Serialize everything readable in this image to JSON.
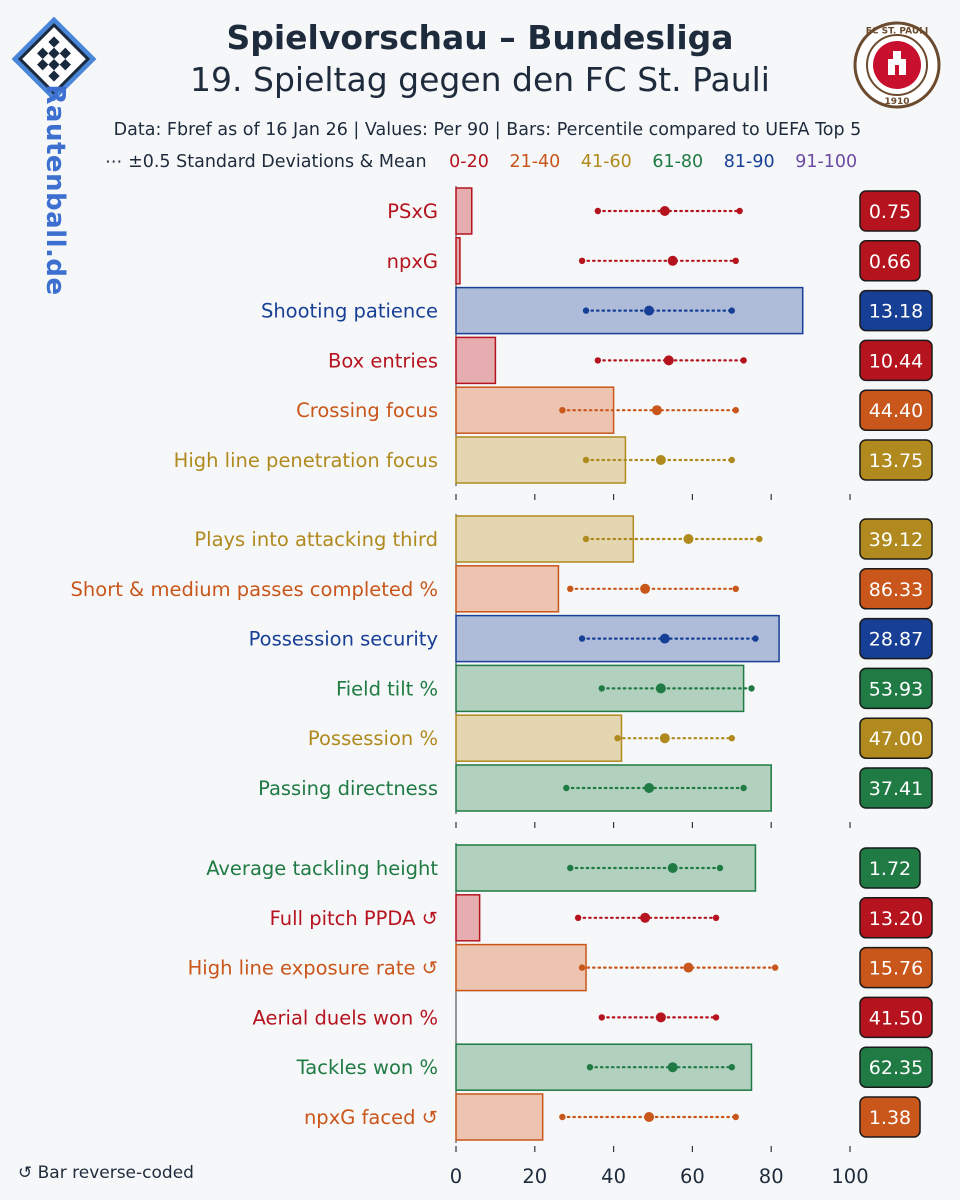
{
  "header": {
    "title": "Spielvorschau – Bundesliga",
    "subtitle": "19. Spieltag gegen den FC St. Pauli",
    "meta": "Data: Fbref as of 16 Jan 26 | Values: Per 90 | Bars: Percentile compared to UEFA Top 5",
    "sd_legend": "⋯  ±0.5 Standard Deviations & Mean",
    "side_brand": "Rautenball.de",
    "team_logo_text": "FC ST. PAULI 1910",
    "footnote": "↺ Bar reverse-coded"
  },
  "colors": {
    "0-20": "#b5141e",
    "21-40": "#c9561a",
    "41-60": "#b08a1e",
    "61-80": "#1f7a44",
    "81-90": "#173f96",
    "91-100": "#6b4aa3"
  },
  "percentile_legend": [
    {
      "label": "0-20",
      "color": "#b5141e"
    },
    {
      "label": "21-40",
      "color": "#c9561a"
    },
    {
      "label": "41-60",
      "color": "#b08a1e"
    },
    {
      "label": "61-80",
      "color": "#1f7a44"
    },
    {
      "label": "81-90",
      "color": "#173f96"
    },
    {
      "label": "91-100",
      "color": "#6b4aa3"
    }
  ],
  "chart_data": {
    "type": "bar",
    "orientation": "horizontal",
    "xlim": [
      0,
      100
    ],
    "xticks": [
      0,
      20,
      40,
      60,
      80,
      100
    ],
    "groups": [
      {
        "metrics": [
          {
            "label": "PSxG",
            "value": "0.75",
            "percentile": 4,
            "band": "0-20",
            "sd_low": 36,
            "mean": 53,
            "sd_high": 72
          },
          {
            "label": "npxG",
            "value": "0.66",
            "percentile": 1,
            "band": "0-20",
            "sd_low": 32,
            "mean": 55,
            "sd_high": 71
          },
          {
            "label": "Shooting patience",
            "value": "13.18",
            "percentile": 88,
            "band": "81-90",
            "sd_low": 33,
            "mean": 49,
            "sd_high": 70
          },
          {
            "label": "Box entries",
            "value": "10.44",
            "percentile": 10,
            "band": "0-20",
            "sd_low": 36,
            "mean": 54,
            "sd_high": 73
          },
          {
            "label": "Crossing focus",
            "value": "44.40",
            "percentile": 40,
            "band": "21-40",
            "sd_low": 27,
            "mean": 51,
            "sd_high": 71
          },
          {
            "label": "High line penetration focus",
            "value": "13.75",
            "percentile": 43,
            "band": "41-60",
            "sd_low": 33,
            "mean": 52,
            "sd_high": 70
          }
        ]
      },
      {
        "metrics": [
          {
            "label": "Plays into attacking third",
            "value": "39.12",
            "percentile": 45,
            "band": "41-60",
            "sd_low": 33,
            "mean": 59,
            "sd_high": 77
          },
          {
            "label": "Short & medium passes completed %",
            "value": "86.33",
            "percentile": 26,
            "band": "21-40",
            "sd_low": 29,
            "mean": 48,
            "sd_high": 71
          },
          {
            "label": "Possession security",
            "value": "28.87",
            "percentile": 82,
            "band": "81-90",
            "sd_low": 32,
            "mean": 53,
            "sd_high": 76
          },
          {
            "label": "Field tilt %",
            "value": "53.93",
            "percentile": 73,
            "band": "61-80",
            "sd_low": 37,
            "mean": 52,
            "sd_high": 75
          },
          {
            "label": "Possession %",
            "value": "47.00",
            "percentile": 42,
            "band": "41-60",
            "sd_low": 41,
            "mean": 53,
            "sd_high": 70
          },
          {
            "label": "Passing directness",
            "value": "37.41",
            "percentile": 80,
            "band": "61-80",
            "sd_low": 28,
            "mean": 49,
            "sd_high": 73
          }
        ]
      },
      {
        "metrics": [
          {
            "label": "Average tackling height",
            "value": "1.72",
            "percentile": 76,
            "band": "61-80",
            "sd_low": 29,
            "mean": 55,
            "sd_high": 67
          },
          {
            "label": "Full pitch PPDA ↺",
            "value": "13.20",
            "percentile": 6,
            "band": "0-20",
            "sd_low": 31,
            "mean": 48,
            "sd_high": 66
          },
          {
            "label": "High line exposure rate ↺",
            "value": "15.76",
            "percentile": 33,
            "band": "21-40",
            "sd_low": 32,
            "mean": 59,
            "sd_high": 81
          },
          {
            "label": "Aerial duels won %",
            "value": "41.50",
            "percentile": 0,
            "band": "0-20",
            "sd_low": 37,
            "mean": 52,
            "sd_high": 66
          },
          {
            "label": "Tackles won %",
            "value": "62.35",
            "percentile": 75,
            "band": "61-80",
            "sd_low": 34,
            "mean": 55,
            "sd_high": 70
          },
          {
            "label": "npxG faced ↺",
            "value": "1.38",
            "percentile": 22,
            "band": "21-40",
            "sd_low": 27,
            "mean": 49,
            "sd_high": 71
          }
        ]
      }
    ]
  }
}
